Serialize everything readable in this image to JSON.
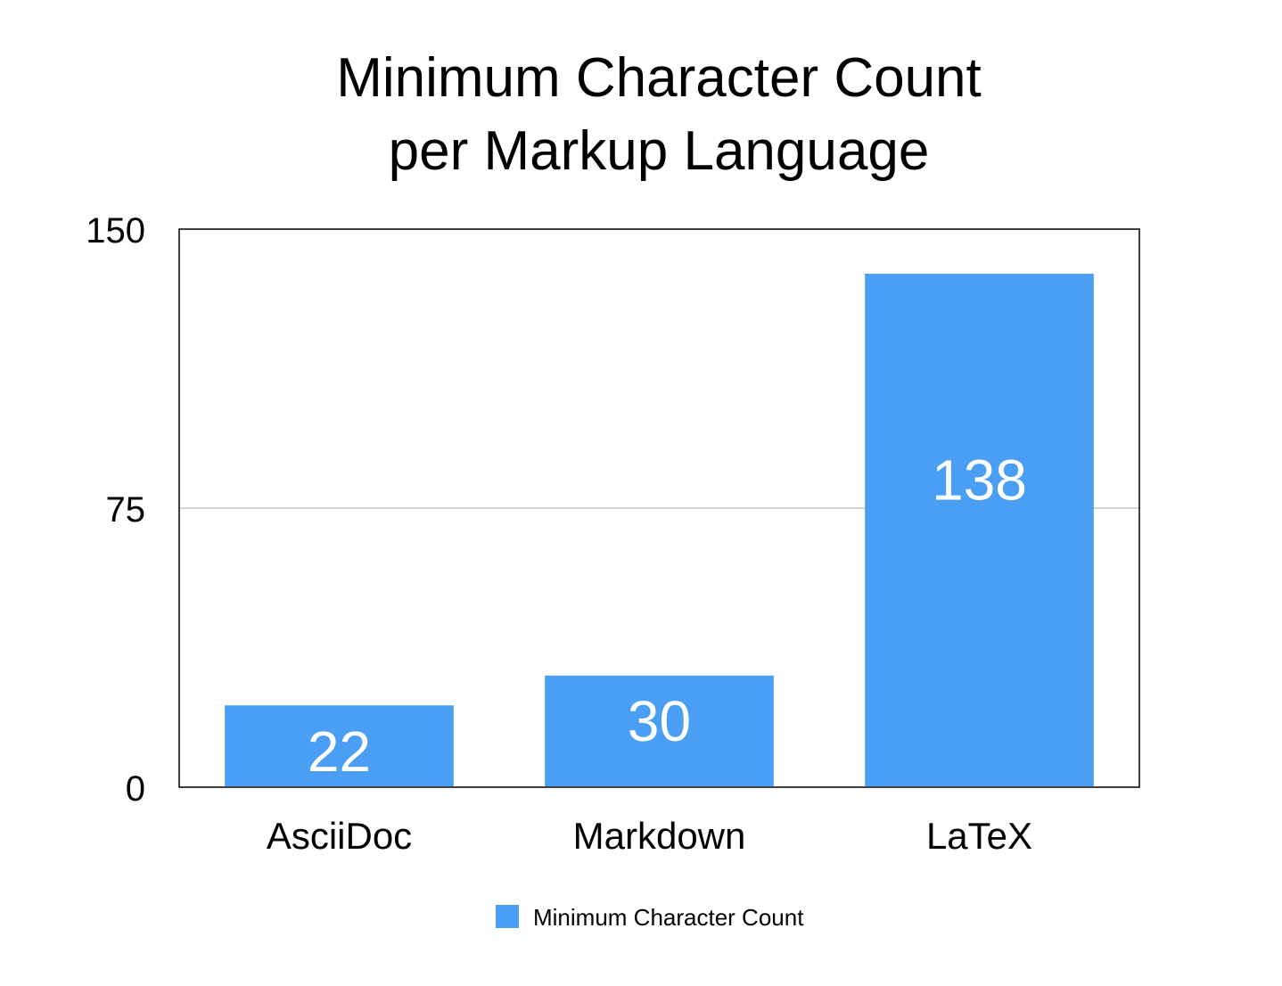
{
  "chart_data": {
    "type": "bar",
    "title": [
      "Minimum Character Count",
      "per Markup Language"
    ],
    "categories": [
      "AsciiDoc",
      "Markdown",
      "LaTeX"
    ],
    "series": [
      {
        "name": "Minimum Character Count",
        "values": [
          22,
          30,
          138
        ],
        "color": "#4a9ff5"
      }
    ],
    "data_labels": [
      "22",
      "30",
      "138"
    ],
    "ylim": [
      0,
      150
    ],
    "yticks": [
      0,
      75,
      150
    ],
    "ytick_labels": [
      "0",
      "75",
      "150"
    ],
    "grid": true,
    "legend": "bottom-center"
  }
}
